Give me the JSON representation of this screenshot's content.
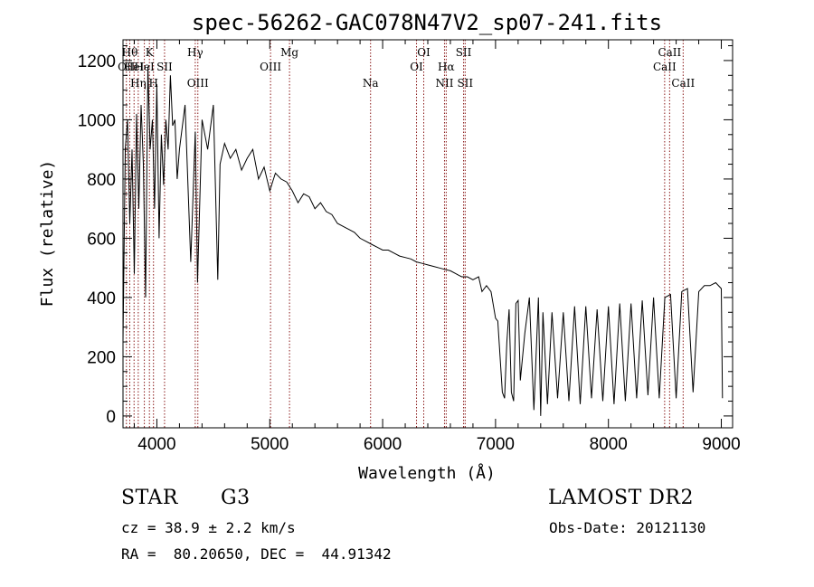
{
  "chart_data": {
    "type": "line",
    "title": "spec-56262-GAC078N47V2_sp07-241.fits",
    "xlabel": "Wavelength (Å)",
    "ylabel": "Flux (relative)",
    "xlim": [
      3700,
      9100
    ],
    "ylim": [
      -40,
      1270
    ],
    "xticks": [
      4000,
      5000,
      6000,
      7000,
      8000,
      9000
    ],
    "yticks": [
      0,
      200,
      400,
      600,
      800,
      1000,
      1200
    ],
    "grid": false,
    "line_color": "#000000",
    "marker_color": "#8b1a1a",
    "series": [
      {
        "x": [
          3700,
          3720,
          3740,
          3760,
          3780,
          3800,
          3820,
          3840,
          3860,
          3880,
          3900,
          3920,
          3940,
          3960,
          3980,
          4000,
          4020,
          4040,
          4060,
          4080,
          4100,
          4120,
          4140,
          4160,
          4180,
          4200,
          4250,
          4300,
          4340,
          4360,
          4400,
          4450,
          4500,
          4540,
          4560,
          4600,
          4650,
          4700,
          4750,
          4800,
          4850,
          4900,
          4950,
          5000,
          5050,
          5100,
          5150,
          5200,
          5250,
          5300,
          5350,
          5400,
          5450,
          5500,
          5550,
          5600,
          5650,
          5700,
          5750,
          5800,
          5850,
          5900,
          5950,
          6000,
          6050,
          6100,
          6150,
          6200,
          6250,
          6300,
          6350,
          6400,
          6450,
          6500,
          6550,
          6600,
          6650,
          6700,
          6750,
          6800,
          6850,
          6880,
          6920,
          6960,
          7000,
          7020,
          7040,
          7060,
          7080,
          7100,
          7120,
          7140,
          7160,
          7180,
          7200,
          7220,
          7260,
          7300,
          7340,
          7380,
          7400,
          7420,
          7460,
          7500,
          7550,
          7600,
          7650,
          7700,
          7750,
          7800,
          7850,
          7900,
          7950,
          8000,
          8050,
          8100,
          8150,
          8200,
          8250,
          8300,
          8350,
          8400,
          8450,
          8500,
          8550,
          8600,
          8650,
          8700,
          8750,
          8800,
          8850,
          8900,
          8950,
          9000,
          9010
        ],
        "y": [
          250,
          900,
          1000,
          650,
          900,
          480,
          1020,
          700,
          1050,
          850,
          400,
          1180,
          900,
          1000,
          700,
          1120,
          600,
          950,
          780,
          1000,
          900,
          1150,
          980,
          1000,
          800,
          900,
          1050,
          520,
          960,
          450,
          1000,
          900,
          1050,
          460,
          850,
          920,
          870,
          900,
          830,
          870,
          900,
          800,
          840,
          760,
          820,
          800,
          790,
          760,
          720,
          750,
          740,
          700,
          720,
          690,
          680,
          650,
          640,
          630,
          620,
          600,
          590,
          580,
          570,
          560,
          560,
          550,
          540,
          535,
          530,
          520,
          515,
          510,
          505,
          500,
          495,
          490,
          480,
          470,
          470,
          460,
          470,
          420,
          440,
          420,
          330,
          320,
          200,
          80,
          60,
          250,
          360,
          80,
          50,
          380,
          390,
          120,
          280,
          400,
          20,
          400,
          0,
          350,
          40,
          350,
          60,
          350,
          50,
          370,
          40,
          370,
          60,
          360,
          50,
          370,
          40,
          380,
          50,
          380,
          60,
          390,
          70,
          400,
          60,
          400,
          410,
          60,
          420,
          430,
          80,
          420,
          440,
          440,
          450,
          430,
          60
        ],
        "name": ""
      }
    ],
    "line_markers": [
      {
        "wavelength": 3730,
        "label": "OII",
        "row": 2
      },
      {
        "wavelength": 3760,
        "label": "Hθ",
        "row": 1
      },
      {
        "wavelength": 3798,
        "label": "HeI",
        "row": 2
      },
      {
        "wavelength": 3835,
        "label": "Hη",
        "row": 3
      },
      {
        "wavelength": 3889,
        "label": "HeI",
        "row": 2
      },
      {
        "wavelength": 3934,
        "label": "K",
        "row": 1
      },
      {
        "wavelength": 3970,
        "label": "H",
        "row": 3
      },
      {
        "wavelength": 4068,
        "label": "SII",
        "row": 2
      },
      {
        "wavelength": 4340,
        "label": "Hγ",
        "row": 1
      },
      {
        "wavelength": 4363,
        "label": "OIII",
        "row": 3
      },
      {
        "wavelength": 5007,
        "label": "OIII",
        "row": 2
      },
      {
        "wavelength": 5175,
        "label": "Mg",
        "row": 1
      },
      {
        "wavelength": 5893,
        "label": "Na",
        "row": 3
      },
      {
        "wavelength": 6300,
        "label": "OI",
        "row": 2
      },
      {
        "wavelength": 6364,
        "label": "OI",
        "row": 1
      },
      {
        "wavelength": 6548,
        "label": "NII",
        "row": 3
      },
      {
        "wavelength": 6563,
        "label": "Hα",
        "row": 2
      },
      {
        "wavelength": 6717,
        "label": "SII",
        "row": 1
      },
      {
        "wavelength": 6731,
        "label": "SII",
        "row": 3
      },
      {
        "wavelength": 8498,
        "label": "CaII",
        "row": 2
      },
      {
        "wavelength": 8542,
        "label": "CaII",
        "row": 1
      },
      {
        "wavelength": 8662,
        "label": "CaII",
        "row": 3
      }
    ]
  },
  "info": {
    "class": "STAR",
    "subclass": "G3",
    "survey": "LAMOST DR2",
    "cz": "cz = 38.9 ± 2.2 km/s",
    "obs_date": "Obs-Date: 20121130",
    "coords": "RA =  80.20650, DEC =  44.91342"
  }
}
